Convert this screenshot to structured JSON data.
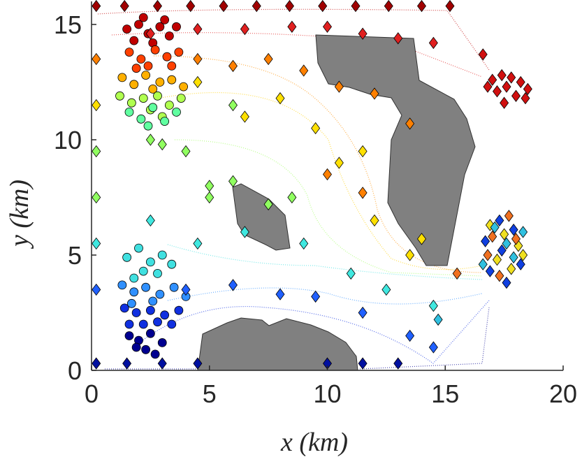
{
  "chart_data": {
    "type": "scatter",
    "xlabel": "x (km)",
    "ylabel": "y (km)",
    "xlim": [
      0,
      20
    ],
    "ylim": [
      0,
      16
    ],
    "xticks": [
      0,
      5,
      10,
      15,
      20
    ],
    "yticks": [
      0,
      5,
      10,
      15
    ],
    "series": [
      {
        "marker": "circle",
        "color": "#c00000",
        "x": [
          1.5,
          2.0,
          2.4,
          2.9,
          3.3,
          1.8,
          2.6,
          3.1,
          2.2,
          3.6
        ],
        "y": [
          14.8,
          15.0,
          14.6,
          14.9,
          14.5,
          14.3,
          14.2,
          15.2,
          15.3,
          14.9
        ]
      },
      {
        "marker": "circle",
        "color": "#ff4000",
        "x": [
          1.6,
          2.1,
          2.7,
          3.2,
          3.7,
          2.4,
          1.9,
          3.4
        ],
        "y": [
          13.8,
          13.5,
          13.9,
          13.6,
          13.8,
          13.2,
          13.1,
          13.2
        ]
      },
      {
        "marker": "circle",
        "color": "#ffb000",
        "x": [
          1.3,
          1.8,
          2.3,
          2.9,
          3.4,
          3.9,
          2.6
        ],
        "y": [
          12.7,
          12.4,
          12.8,
          12.5,
          12.6,
          12.3,
          12.2
        ]
      },
      {
        "marker": "circle",
        "color": "#b0ff50",
        "x": [
          1.2,
          1.7,
          2.2,
          2.8,
          3.3,
          3.8,
          2.5,
          3.0
        ],
        "y": [
          11.9,
          11.6,
          11.8,
          11.9,
          11.5,
          11.8,
          11.3,
          11.0
        ]
      },
      {
        "marker": "circle",
        "color": "#60ffa0",
        "x": [
          1.6,
          2.1,
          2.6,
          3.1,
          3.6,
          2.4
        ],
        "y": [
          11.2,
          10.9,
          11.4,
          10.8,
          11.2,
          10.6
        ]
      },
      {
        "marker": "circle",
        "color": "#40e0e0",
        "x": [
          1.5,
          2.0,
          2.5,
          3.0,
          3.4,
          2.2,
          2.8,
          1.8
        ],
        "y": [
          4.9,
          5.3,
          4.7,
          5.0,
          4.6,
          4.3,
          4.2,
          4.0
        ]
      },
      {
        "marker": "circle",
        "color": "#3090ff",
        "x": [
          1.3,
          1.8,
          2.3,
          2.9,
          3.5,
          4.0,
          2.6,
          1.7
        ],
        "y": [
          3.7,
          3.4,
          3.6,
          3.3,
          3.6,
          3.2,
          3.0,
          2.9
        ]
      },
      {
        "marker": "circle",
        "color": "#1030e0",
        "x": [
          1.4,
          1.9,
          2.5,
          3.1,
          3.7,
          2.2,
          2.8,
          3.4,
          1.6
        ],
        "y": [
          2.7,
          2.5,
          2.6,
          2.4,
          2.6,
          2.0,
          2.1,
          2.0,
          2.0
        ]
      },
      {
        "marker": "circle",
        "color": "#000090",
        "x": [
          1.6,
          2.0,
          2.5,
          3.0,
          2.3,
          2.7,
          1.9
        ],
        "y": [
          1.5,
          1.3,
          1.6,
          1.2,
          0.9,
          0.7,
          1.0
        ]
      },
      {
        "marker": "diamond",
        "color": "#d01010",
        "x": [
          17.0,
          17.4,
          17.8,
          18.2,
          18.5,
          17.2,
          17.6,
          18.0,
          18.4,
          17.5,
          16.6,
          16.8
        ],
        "y": [
          12.6,
          12.8,
          12.7,
          12.5,
          12.2,
          12.1,
          12.3,
          11.9,
          11.8,
          11.6,
          13.7,
          12.3
        ]
      },
      {
        "marker": "diamond",
        "color": "#a00000",
        "x": [
          0.2,
          1.4,
          2.8,
          4.2,
          5.6,
          7.0,
          8.4,
          9.8,
          11.2,
          12.6,
          14.0,
          15.2
        ],
        "y": [
          15.8,
          15.8,
          15.8,
          15.8,
          15.8,
          15.8,
          15.8,
          15.8,
          15.8,
          15.8,
          15.8,
          15.8
        ]
      },
      {
        "marker": "diamond",
        "color": "#e02020",
        "x": [
          2.5,
          4.5,
          6.5,
          8.5,
          10.0,
          11.5,
          13.0,
          14.5
        ],
        "y": [
          14.6,
          14.8,
          14.8,
          14.9,
          14.9,
          14.6,
          14.4,
          14.2
        ]
      },
      {
        "marker": "diamond",
        "color": "#ff8000",
        "x": [
          0.2,
          4.5,
          6.0,
          7.5,
          9.0,
          10.5,
          12.0,
          13.5,
          10.0,
          11.5
        ],
        "y": [
          13.5,
          13.5,
          13.2,
          13.5,
          13.0,
          12.3,
          12.0,
          10.7,
          8.5,
          7.7
        ]
      },
      {
        "marker": "diamond",
        "color": "#ffe000",
        "x": [
          0.2,
          4.5,
          6.5,
          8.0,
          9.5,
          11.5,
          12.0,
          14.0,
          10.5,
          13.5
        ],
        "y": [
          11.5,
          12.5,
          11.0,
          11.8,
          10.5,
          9.5,
          6.5,
          5.7,
          9.0,
          5.0
        ]
      },
      {
        "marker": "diamond",
        "color": "#90ff60",
        "x": [
          0.2,
          0.2,
          2.5,
          4.0,
          6.0,
          7.5,
          5.0,
          3.0,
          6.0,
          8.5,
          5.0
        ],
        "y": [
          9.5,
          7.5,
          10.0,
          9.5,
          8.2,
          7.2,
          8.0,
          9.8,
          11.5,
          7.5,
          7.5
        ]
      },
      {
        "marker": "diamond",
        "color": "#40e8e0",
        "x": [
          0.2,
          2.5,
          4.5,
          6.5,
          9.0,
          11.0,
          12.5,
          14.5
        ],
        "y": [
          5.5,
          6.5,
          5.5,
          6.0,
          5.5,
          4.2,
          3.5,
          2.8
        ]
      },
      {
        "marker": "diamond",
        "color": "#2060ff",
        "x": [
          0.2,
          4.0,
          6.0,
          8.0,
          9.5,
          11.5,
          13.5,
          14.5
        ],
        "y": [
          3.5,
          3.5,
          3.7,
          3.3,
          3.2,
          2.5,
          1.5,
          1.0
        ]
      },
      {
        "marker": "diamond",
        "color": "#0010a0",
        "x": [
          0.2,
          1.5,
          3.0,
          4.5,
          10.0,
          11.5,
          13.0
        ],
        "y": [
          0.3,
          0.3,
          0.3,
          0.3,
          0.3,
          0.3,
          0.3
        ]
      },
      {
        "marker": "diamond",
        "color": "#f0e020",
        "x": [
          16.9,
          17.5,
          18.1,
          17.2,
          17.8,
          18.3
        ],
        "y": [
          6.3,
          5.9,
          5.4,
          4.8,
          4.4,
          5.0
        ]
      },
      {
        "marker": "diamond",
        "color": "#1040e0",
        "x": [
          16.7,
          17.3,
          17.9,
          16.9,
          17.6,
          18.2,
          17.4
        ],
        "y": [
          5.6,
          6.5,
          6.1,
          4.3,
          3.8,
          4.6,
          5.2
        ]
      },
      {
        "marker": "diamond",
        "color": "#f07020",
        "x": [
          17.0,
          17.7,
          16.8,
          18.0,
          17.3,
          15.5
        ],
        "y": [
          5.8,
          6.7,
          5.0,
          5.7,
          4.1,
          4.2
        ]
      },
      {
        "marker": "diamond",
        "color": "#30c0e0",
        "x": [
          17.6,
          18.3,
          16.6,
          17.1,
          17.9,
          14.7
        ],
        "y": [
          5.5,
          6.0,
          4.6,
          6.2,
          4.9,
          2.2
        ]
      }
    ]
  }
}
